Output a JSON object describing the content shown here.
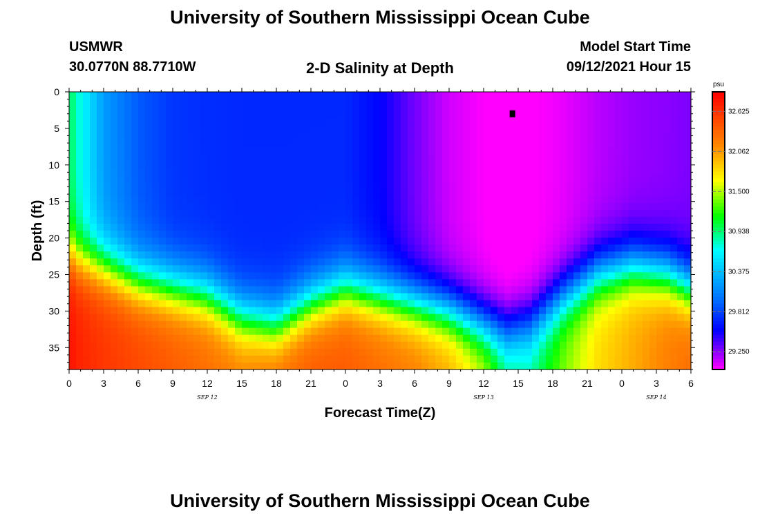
{
  "header": {
    "title_top": "University of Southern Mississippi Ocean Cube",
    "title_bottom": "University of Southern Mississippi Ocean Cube",
    "station": "USMWR",
    "coords": "30.0770N  88.7710W",
    "plot_title": "2-D Salinity at Depth",
    "model_start_label": "Model Start Time",
    "model_start_value": "09/12/2021 Hour 15"
  },
  "chart_data": {
    "type": "heatmap",
    "title": "2-D Salinity at Depth",
    "xlabel": "Forecast Time(Z)",
    "ylabel": "Depth (ft)",
    "x_tick_labels": [
      "0",
      "3",
      "6",
      "9",
      "12",
      "15",
      "18",
      "21",
      "0",
      "3",
      "6",
      "9",
      "12",
      "15",
      "18",
      "21",
      "0",
      "3",
      "6"
    ],
    "x_range_hours": [
      0,
      54
    ],
    "date_labels": [
      {
        "label": "SEP 12",
        "hour": 12
      },
      {
        "label": "SEP 13",
        "hour": 36
      },
      {
        "label": "SEP 14",
        "hour": 51
      }
    ],
    "y_tick_labels": [
      "0",
      "5",
      "10",
      "15",
      "20",
      "25",
      "30",
      "35"
    ],
    "y_ticks": [
      0,
      5,
      10,
      15,
      20,
      25,
      30,
      35
    ],
    "ylim": [
      0,
      38
    ],
    "y_inverted": true,
    "colorbar": {
      "unit": "psu",
      "labels": [
        "32.625",
        "32.062",
        "31.500",
        "30.938",
        "30.375",
        "29.812",
        "29.250"
      ],
      "values": [
        32.625,
        32.062,
        31.5,
        30.938,
        30.375,
        29.812,
        29.25
      ],
      "range": [
        29.0,
        32.9
      ]
    },
    "marker": {
      "hour": 38.5,
      "depth": 3
    },
    "time_hours": [
      0,
      1,
      3,
      6,
      9,
      12,
      15,
      18,
      21,
      24,
      27,
      30,
      33,
      36,
      38,
      40,
      43,
      46,
      49,
      52,
      54
    ],
    "surface_salinity": [
      31.0,
      30.7,
      30.2,
      29.9,
      29.75,
      29.72,
      29.7,
      29.7,
      29.7,
      29.7,
      29.55,
      29.3,
      29.1,
      29.0,
      28.95,
      28.98,
      29.05,
      29.15,
      29.22,
      29.25,
      29.28
    ],
    "halocline_depth_ft": [
      22,
      23,
      24,
      26,
      27,
      28,
      31,
      32,
      29,
      27,
      28,
      29,
      30,
      32,
      33,
      32,
      28,
      25,
      24,
      25,
      27
    ],
    "bottom_salinity": [
      32.8,
      32.7,
      32.6,
      32.5,
      32.4,
      32.3,
      32.2,
      32.3,
      32.4,
      32.4,
      32.3,
      32.2,
      32.0,
      31.6,
      31.0,
      30.9,
      31.4,
      31.8,
      32.0,
      32.2,
      32.3
    ]
  }
}
